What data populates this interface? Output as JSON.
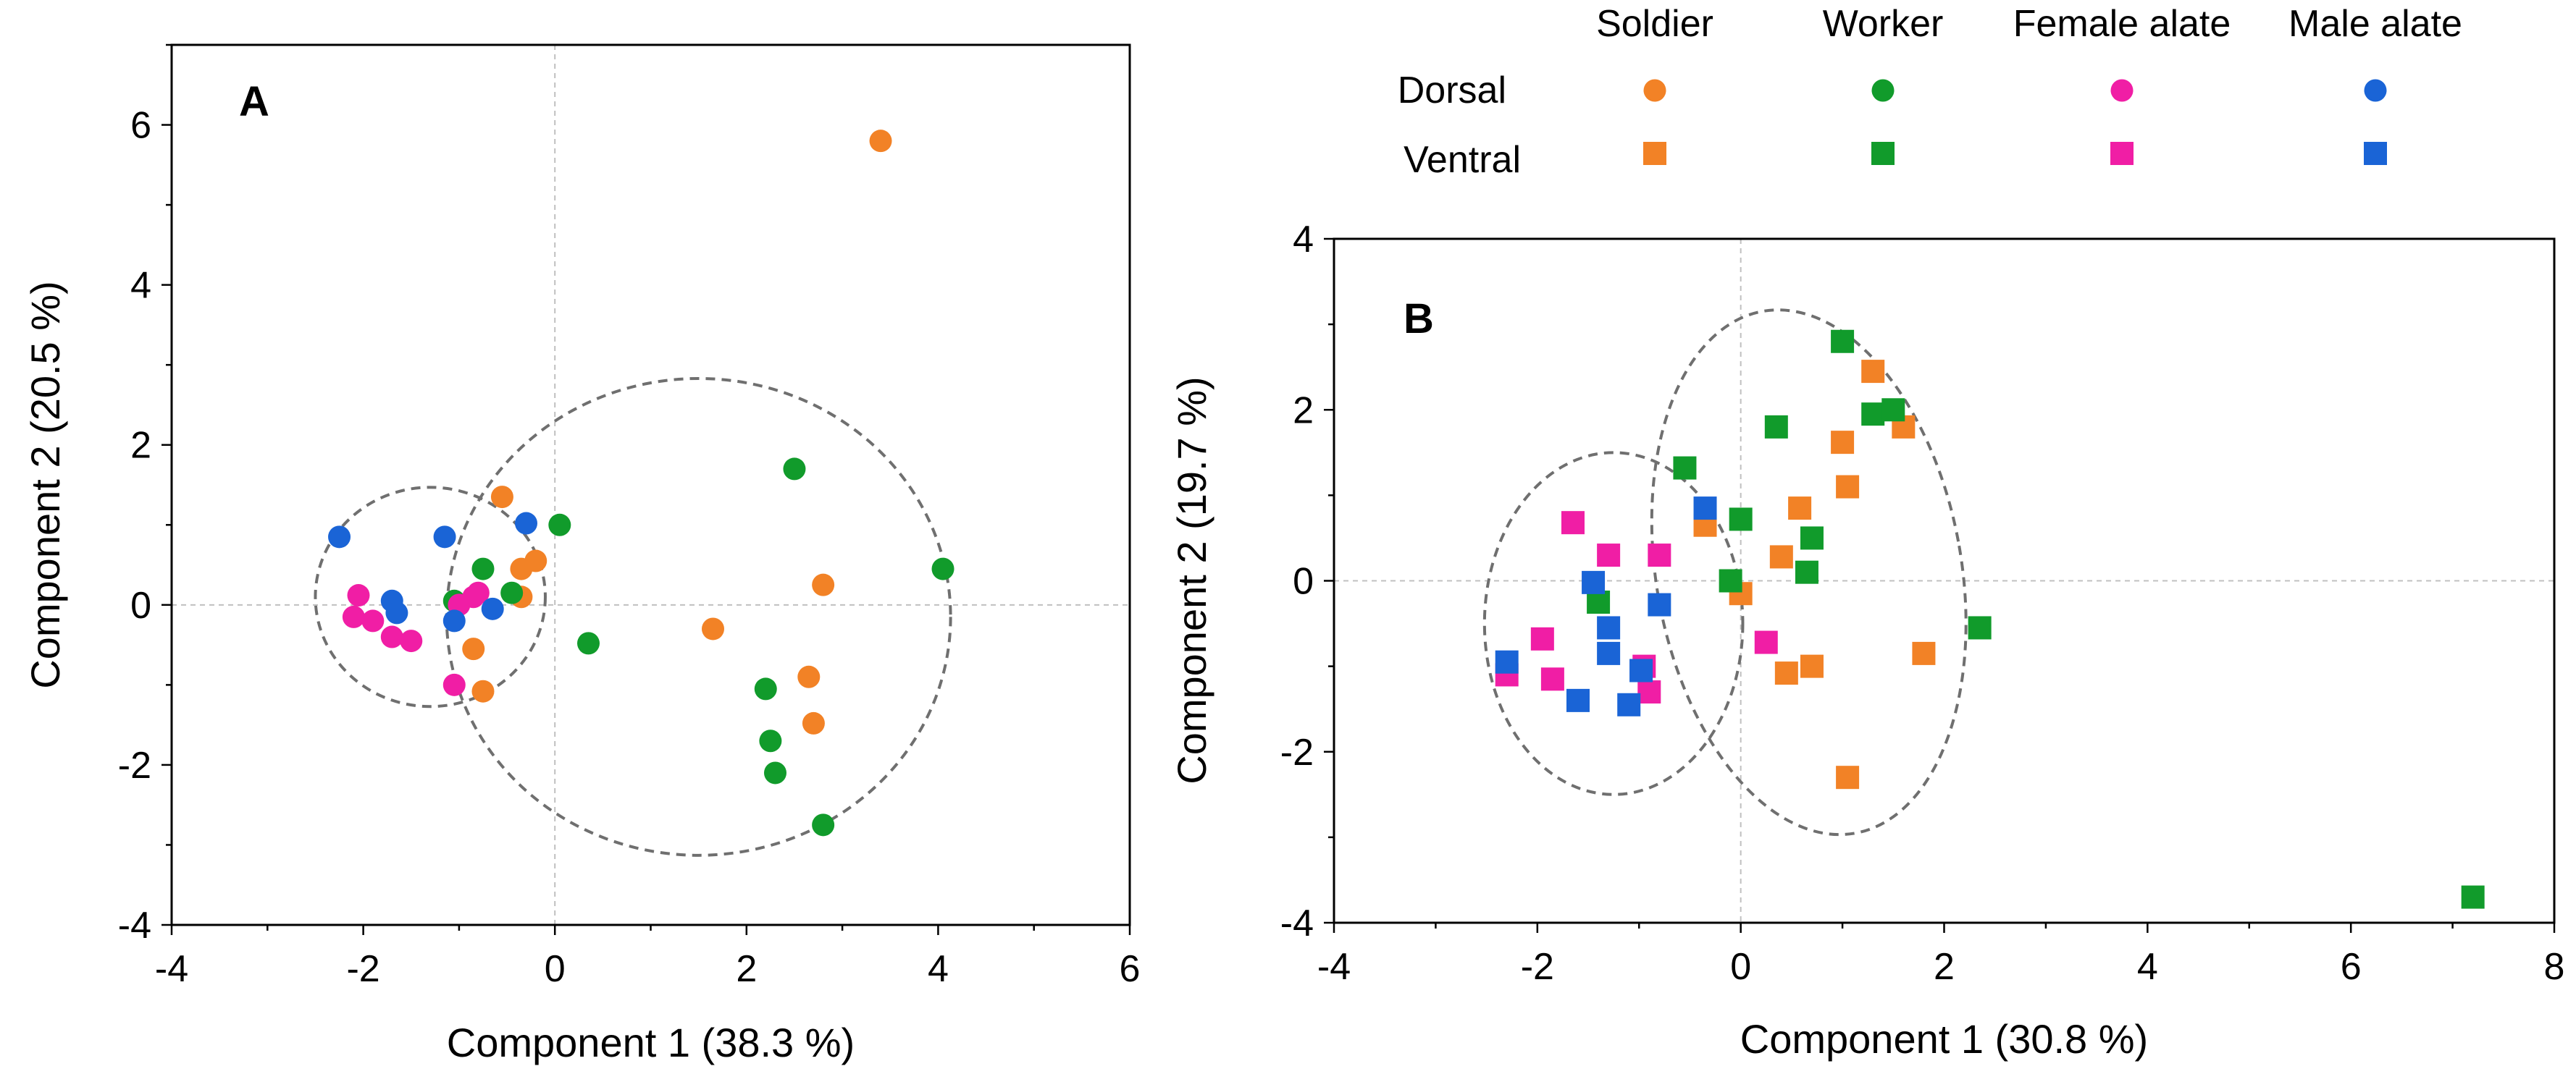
{
  "legend": {
    "columns": [
      "Soldier",
      "Worker",
      "Female alate",
      "Male alate"
    ],
    "rows": [
      "Dorsal",
      "Ventral"
    ],
    "colors": {
      "Soldier": "#f28226",
      "Worker": "#119b2b",
      "Female alate": "#f01ea5",
      "Male alate": "#1a64d6"
    },
    "row_markers": {
      "Dorsal": "circle",
      "Ventral": "square"
    }
  },
  "chart_data": [
    {
      "id": "A",
      "type": "scatter",
      "panel_label": "A",
      "xlabel": "Component 1  (38.3 %)",
      "ylabel": "Component 2  (20.5 %)",
      "xlim": [
        -4,
        6
      ],
      "ylim": [
        -4,
        7
      ],
      "xticks": [
        -4,
        -2,
        0,
        2,
        4,
        6
      ],
      "yticks": [
        -4,
        -2,
        0,
        2,
        4,
        6
      ],
      "marker": "circle",
      "ellipses": [
        {
          "center": [
            -1.3,
            0.1
          ],
          "rx": 1.2,
          "ry": 1.37
        },
        {
          "center": [
            1.5,
            -0.15
          ],
          "rx": 2.63,
          "ry": 2.98
        }
      ],
      "series": [
        {
          "name": "Soldier",
          "points": [
            [
              3.4,
              5.8
            ],
            [
              2.8,
              0.25
            ],
            [
              1.65,
              -0.3
            ],
            [
              2.65,
              -0.9
            ],
            [
              2.7,
              -1.48
            ],
            [
              -0.55,
              1.35
            ],
            [
              -0.2,
              0.55
            ],
            [
              -0.35,
              0.45
            ],
            [
              -0.35,
              0.1
            ],
            [
              -0.85,
              -0.55
            ],
            [
              -0.75,
              -1.08
            ]
          ]
        },
        {
          "name": "Worker",
          "points": [
            [
              4.05,
              0.45
            ],
            [
              2.5,
              1.7
            ],
            [
              0.05,
              1.0
            ],
            [
              -0.75,
              0.45
            ],
            [
              -1.05,
              0.05
            ],
            [
              -0.45,
              0.15
            ],
            [
              0.35,
              -0.48
            ],
            [
              2.2,
              -1.05
            ],
            [
              2.25,
              -1.7
            ],
            [
              2.3,
              -2.1
            ],
            [
              2.8,
              -2.75
            ]
          ]
        },
        {
          "name": "Female alate",
          "points": [
            [
              -2.05,
              0.12
            ],
            [
              -2.1,
              -0.15
            ],
            [
              -1.9,
              -0.2
            ],
            [
              -1.7,
              -0.4
            ],
            [
              -1.5,
              -0.45
            ],
            [
              -1.0,
              0.0
            ],
            [
              -0.85,
              0.1
            ],
            [
              -0.8,
              0.15
            ],
            [
              -1.05,
              -1.0
            ]
          ]
        },
        {
          "name": "Male alate",
          "points": [
            [
              -2.25,
              0.85
            ],
            [
              -1.15,
              0.85
            ],
            [
              -0.3,
              1.02
            ],
            [
              -1.7,
              0.05
            ],
            [
              -1.65,
              -0.1
            ],
            [
              -1.05,
              -0.2
            ],
            [
              -0.65,
              -0.05
            ]
          ]
        }
      ]
    },
    {
      "id": "B",
      "type": "scatter",
      "panel_label": "B",
      "xlabel": "Component 1  (30.8 %)",
      "ylabel": "Component 2  (19.7 %)",
      "xlim": [
        -4,
        8
      ],
      "ylim": [
        -4,
        4
      ],
      "xticks": [
        -4,
        -2,
        0,
        2,
        4,
        6,
        8
      ],
      "yticks": [
        -4,
        -2,
        0,
        2,
        4
      ],
      "marker": "square",
      "ellipses": [
        {
          "center": [
            -1.25,
            -0.5
          ],
          "rx": 1.27,
          "ry": 2.0
        },
        {
          "center": [
            0.67,
            0.1
          ],
          "rx": 1.5,
          "ry": 3.1,
          "rotation": -10
        }
      ],
      "series": [
        {
          "name": "Soldier",
          "points": [
            [
              1.3,
              2.45
            ],
            [
              1.6,
              1.8
            ],
            [
              1.0,
              1.62
            ],
            [
              1.05,
              1.1
            ],
            [
              0.58,
              0.85
            ],
            [
              -0.35,
              0.65
            ],
            [
              0.4,
              0.28
            ],
            [
              0.0,
              -0.15
            ],
            [
              0.45,
              -1.08
            ],
            [
              0.7,
              -1.0
            ],
            [
              1.05,
              -2.3
            ],
            [
              1.8,
              -0.85
            ]
          ]
        },
        {
          "name": "Worker",
          "points": [
            [
              1.0,
              2.8
            ],
            [
              1.3,
              1.95
            ],
            [
              1.5,
              2.0
            ],
            [
              0.35,
              1.8
            ],
            [
              -0.55,
              1.32
            ],
            [
              0.0,
              0.72
            ],
            [
              0.7,
              0.5
            ],
            [
              0.65,
              0.1
            ],
            [
              -0.1,
              0.0
            ],
            [
              -1.4,
              -0.25
            ],
            [
              2.35,
              -0.55
            ],
            [
              7.2,
              -3.7
            ]
          ]
        },
        {
          "name": "Female alate",
          "points": [
            [
              -1.65,
              0.68
            ],
            [
              -1.3,
              0.3
            ],
            [
              -0.8,
              0.3
            ],
            [
              -1.95,
              -0.68
            ],
            [
              -2.3,
              -1.1
            ],
            [
              -1.85,
              -1.15
            ],
            [
              -0.95,
              -1.0
            ],
            [
              -0.9,
              -1.3
            ],
            [
              0.25,
              -0.72
            ]
          ]
        },
        {
          "name": "Male alate",
          "points": [
            [
              -0.35,
              0.85
            ],
            [
              -1.45,
              -0.02
            ],
            [
              -0.8,
              -0.28
            ],
            [
              -1.3,
              -0.55
            ],
            [
              -1.3,
              -0.85
            ],
            [
              -2.3,
              -0.95
            ],
            [
              -0.98,
              -1.05
            ],
            [
              -1.6,
              -1.4
            ],
            [
              -1.1,
              -1.45
            ]
          ]
        }
      ]
    }
  ]
}
